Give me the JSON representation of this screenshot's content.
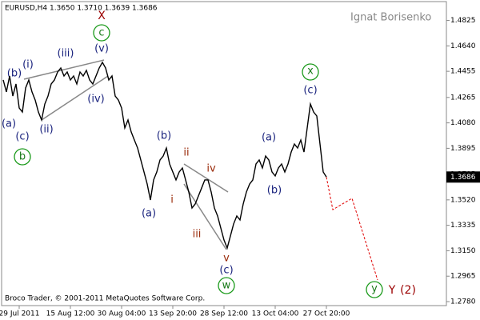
{
  "chart_data": {
    "type": "line",
    "title": "EURUSD,H4  1.3650 1.3710 1.3639 1.3686",
    "subtitle": "Ignat Borisenko",
    "footer": "Broco Trader, © 2001-2011 MetaQuotes Software Corp.",
    "color": "#000000",
    "categories": [
      null,
      null,
      null,
      null,
      null,
      "29 Jul 2011",
      null,
      null,
      null,
      null,
      null,
      null,
      null,
      null,
      null,
      null,
      null,
      null,
      null,
      null,
      null,
      "15 Aug 12:00",
      null,
      null,
      null,
      null,
      null,
      null,
      null,
      null,
      null,
      null,
      null,
      null,
      null,
      null,
      null,
      "30 Aug 04:00",
      null,
      null,
      null,
      null,
      null,
      null,
      null,
      null,
      null,
      null,
      null,
      null,
      null,
      null,
      null,
      "13 Sep 20:00",
      null,
      null,
      null,
      null,
      null,
      null,
      null,
      null,
      null,
      null,
      null,
      null,
      null,
      null,
      null,
      "28 Sep 12:00",
      null,
      null,
      null,
      null,
      null,
      null,
      null,
      null,
      null,
      null,
      null,
      null,
      null,
      null,
      null,
      "13 Oct 04:00",
      null,
      null,
      null,
      null,
      null,
      null,
      null,
      null,
      null,
      null,
      null,
      null,
      null,
      null,
      null,
      "27 Oct 20:00"
    ],
    "values": [
      1.4392,
      1.4305,
      1.4421,
      1.4275,
      1.4363,
      1.4188,
      1.4159,
      1.4334,
      1.4392,
      1.4305,
      1.4246,
      1.4159,
      1.4101,
      1.4217,
      1.4275,
      1.4363,
      1.4392,
      1.445,
      1.4479,
      1.4421,
      1.445,
      1.4392,
      1.4421,
      1.4363,
      1.445,
      1.4421,
      1.4462,
      1.4392,
      1.4363,
      1.4421,
      1.4479,
      1.452,
      1.4479,
      1.4392,
      1.4421,
      1.4275,
      1.4246,
      1.4188,
      1.4043,
      1.4101,
      1.4014,
      1.3955,
      1.3897,
      1.381,
      1.3723,
      1.3635,
      1.3519,
      1.3665,
      1.3723,
      1.381,
      1.3839,
      1.3897,
      1.3781,
      1.3723,
      1.3665,
      1.3723,
      1.3752,
      1.3665,
      1.3577,
      1.3461,
      1.349,
      1.3548,
      1.3606,
      1.3665,
      1.3665,
      1.3577,
      1.3461,
      1.3403,
      1.3315,
      1.3228,
      1.317,
      1.3257,
      1.3345,
      1.3403,
      1.3374,
      1.349,
      1.3577,
      1.3635,
      1.3665,
      1.3781,
      1.381,
      1.3752,
      1.3839,
      1.381,
      1.3723,
      1.3694,
      1.3752,
      1.3781,
      1.3723,
      1.3781,
      1.3868,
      1.3926,
      1.3897,
      1.3955,
      1.3868,
      1.4043,
      1.4217,
      1.4159,
      1.413,
      1.3926,
      1.3723,
      1.3686
    ],
    "last_price": 1.3686,
    "forecast": {
      "color": "#e00000",
      "x": [
        101,
        103,
        109,
        117
      ],
      "values": [
        1.3686,
        1.3449,
        1.3531,
        1.2937
      ]
    },
    "ylim": [
      1.2751,
      1.4962
    ],
    "yticks": [
      1.4825,
      {
        "value": 1.464,
        "label": "1.4640"
      },
      1.4455,
      1.4265,
      {
        "value": 1.408,
        "label": "1.4080"
      },
      1.3895,
      1.3705,
      {
        "value": 1.352,
        "label": "1.3520"
      },
      1.3335,
      {
        "value": 1.315,
        "label": "1.3150"
      },
      1.2965,
      {
        "value": 1.278,
        "label": "1.2780"
      }
    ],
    "annotations": [
      "X",
      "c",
      "(v)",
      "(iii)",
      "(i)",
      "(b)",
      "(iv)",
      "(a)",
      "(ii)",
      "(c)",
      "b",
      "(b)",
      "(a)",
      "ii",
      "iv",
      "i",
      "iii",
      "v",
      "(c)",
      "w",
      "(a)",
      "(b)",
      "x",
      "(c)",
      "y",
      "Y",
      "(2)"
    ]
  }
}
